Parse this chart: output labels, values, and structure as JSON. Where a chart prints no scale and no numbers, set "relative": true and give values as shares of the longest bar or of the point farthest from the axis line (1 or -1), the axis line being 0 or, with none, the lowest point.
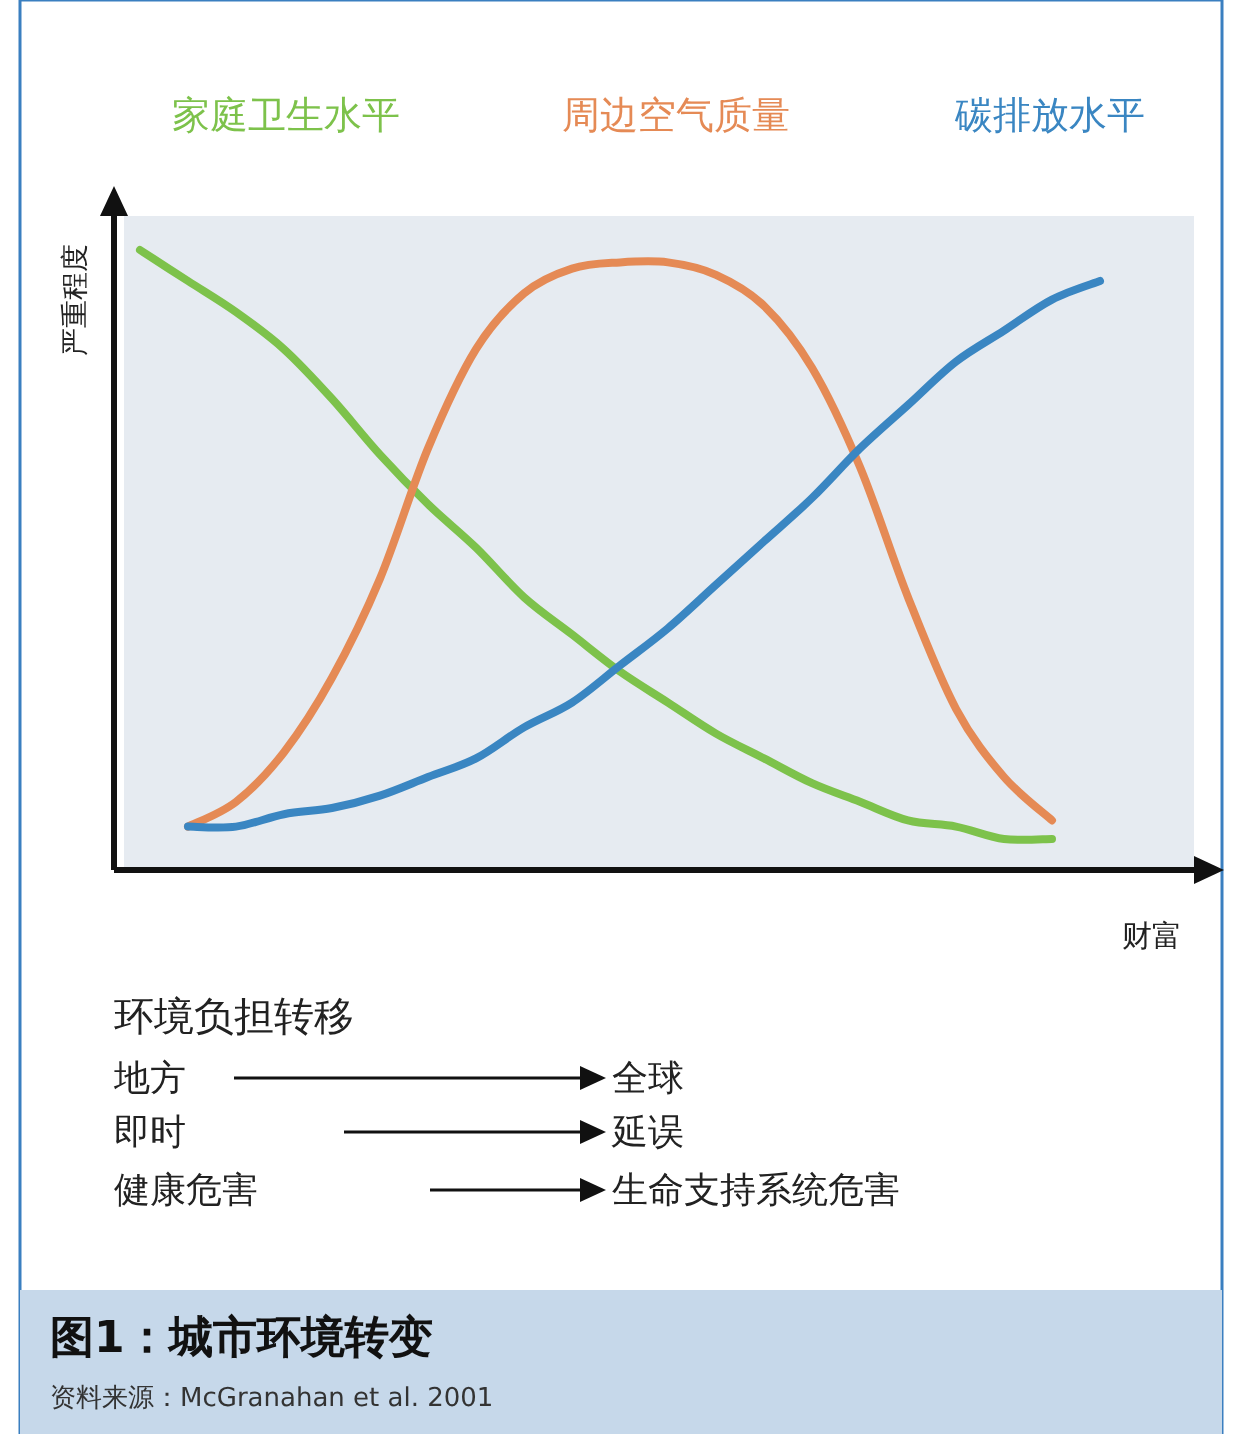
{
  "chart_data": {
    "type": "line",
    "relative": true,
    "legend": "top",
    "title": "图1：城市环境转变",
    "xlabel": "财富",
    "ylabel": "严重程度",
    "categories": [
      null,
      null,
      null,
      null,
      null,
      null,
      null,
      null,
      null,
      null,
      null,
      null,
      null,
      null,
      null,
      null,
      null,
      null,
      null,
      null,
      null
    ],
    "series": [
      {
        "name": "家庭卫生水平",
        "color": "#7dc24b",
        "values": [
          1.0,
          0.95,
          0.9,
          0.84,
          0.76,
          0.67,
          0.59,
          0.52,
          0.44,
          0.38,
          0.32,
          0.27,
          0.22,
          0.18,
          0.14,
          0.11,
          0.08,
          0.07,
          0.05,
          0.05,
          null
        ]
      },
      {
        "name": "周边空气质量",
        "color": "#e58a55",
        "values": [
          null,
          0.07,
          0.11,
          0.19,
          0.31,
          0.47,
          0.68,
          0.84,
          0.93,
          0.97,
          0.98,
          0.98,
          0.96,
          0.91,
          0.81,
          0.65,
          0.44,
          0.26,
          0.15,
          0.08,
          null
        ]
      },
      {
        "name": "碳排放水平",
        "color": "#3a86c2",
        "values": [
          null,
          0.07,
          0.07,
          0.09,
          0.1,
          0.12,
          0.15,
          0.18,
          0.23,
          0.27,
          0.33,
          0.39,
          0.46,
          0.53,
          0.6,
          0.68,
          0.75,
          0.82,
          0.87,
          0.92,
          0.95
        ]
      }
    ],
    "annotations": [
      "环境负担转移",
      "地方",
      "全球",
      "即时",
      "延误",
      "健康危害",
      "生命支持系统危害",
      "资料来源：McGranahan et al. 2001"
    ]
  }
}
